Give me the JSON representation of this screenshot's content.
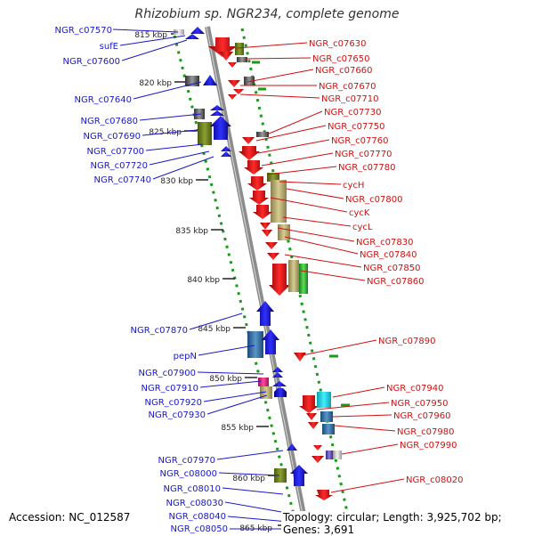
{
  "title": "Rhizobium sp. NGR234, complete genome",
  "accession_text": "Accession: NC_012587",
  "topology_text": "Topology: circular; Length: 3,925,702 bp; Genes: 3,691",
  "colors": {
    "forward": "#1010e0",
    "reverse": "#e01010",
    "forward_label": "#1818c8",
    "reverse_label": "#d01010",
    "dot_track": "#1a9a1a",
    "axis": "#8c8c8c",
    "kbp": "#222222"
  },
  "kbp_ticks": [
    "815 kbp",
    "820 kbp",
    "825 kbp",
    "830 kbp",
    "835 kbp",
    "840 kbp",
    "845 kbp",
    "850 kbp",
    "855 kbp",
    "860 kbp",
    "865 kbp"
  ],
  "left_labels": [
    "NGR_c07570",
    "sufE",
    "NGR_c07600",
    "NGR_c07640",
    "NGR_c07680",
    "NGR_c07690",
    "NGR_c07700",
    "NGR_c07720",
    "NGR_c07740",
    "NGR_c07870",
    "pepN",
    "NGR_c07900",
    "NGR_c07910",
    "NGR_c07920",
    "NGR_c07930",
    "NGR_c07970",
    "NGR_c08000",
    "NGR_c08010",
    "NGR_c08030",
    "NGR_c08040",
    "NGR_c08050"
  ],
  "right_labels": [
    "NGR_c07630",
    "NGR_c07650",
    "NGR_c07660",
    "NGR_c07670",
    "NGR_c07710",
    "NGR_c07730",
    "NGR_c07750",
    "NGR_c07760",
    "NGR_c07770",
    "NGR_c07780",
    "cycH",
    "NGR_c07800",
    "cycK",
    "cycL",
    "NGR_c07830",
    "NGR_c07840",
    "NGR_c07850",
    "NGR_c07860",
    "NGR_c07890",
    "NGR_c07940",
    "NGR_c07950",
    "NGR_c07960",
    "NGR_c07980",
    "NGR_c07990",
    "NGR_c08020"
  ]
}
